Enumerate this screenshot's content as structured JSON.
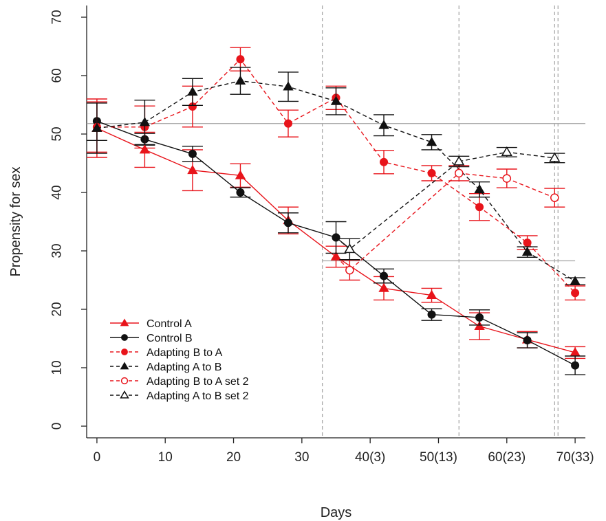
{
  "chart_data": {
    "type": "line",
    "title": "",
    "xlabel": "Days",
    "ylabel": "Propensity for sex",
    "xlim": [
      -1.5,
      71.5
    ],
    "ylim": [
      -2,
      72
    ],
    "x_ticks": [
      {
        "value": 0,
        "label": "0"
      },
      {
        "value": 10,
        "label": "10"
      },
      {
        "value": 20,
        "label": "20"
      },
      {
        "value": 30,
        "label": "30"
      },
      {
        "value": 40,
        "label": "40(3)"
      },
      {
        "value": 50,
        "label": "50(13)"
      },
      {
        "value": 60,
        "label": "60(23)"
      },
      {
        "value": 70,
        "label": "70(33)"
      }
    ],
    "y_ticks": [
      0,
      10,
      20,
      30,
      40,
      50,
      60,
      70
    ],
    "grid": false,
    "legend_position": "bottom-left",
    "reference_lines": {
      "horizontal": [
        {
          "y": 51.8,
          "x_from": -1.5,
          "x_to": 71.5,
          "color": "#aaaaaa"
        },
        {
          "y": 28.3,
          "x_from": 33,
          "x_to": 70,
          "color": "#aaaaaa"
        }
      ],
      "vertical_dashed": [
        33,
        53,
        67,
        67.5
      ],
      "color": "#aaaaaa"
    },
    "series": [
      {
        "name": "Control A",
        "color": "#e8141b",
        "dashed": false,
        "marker": "triangle-filled",
        "x": [
          0,
          7,
          14,
          21,
          28,
          35,
          42,
          49,
          56,
          63,
          70
        ],
        "y": [
          51.0,
          47.3,
          43.8,
          42.9,
          35.2,
          29.0,
          23.6,
          22.4,
          17.1,
          14.8,
          12.6
        ],
        "err": [
          5.0,
          3.0,
          3.5,
          2.0,
          2.3,
          1.8,
          2.0,
          1.2,
          2.3,
          1.4,
          1.0
        ]
      },
      {
        "name": "Control B",
        "color": "#111111",
        "dashed": false,
        "marker": "circle-filled",
        "x": [
          0,
          7,
          14,
          21,
          28,
          35,
          42,
          49,
          56,
          63,
          70
        ],
        "y": [
          52.2,
          49.1,
          46.6,
          40.0,
          34.8,
          32.3,
          25.7,
          19.1,
          18.6,
          14.7,
          10.4
        ],
        "err": [
          3.3,
          1.0,
          1.3,
          0.8,
          1.7,
          2.7,
          1.2,
          1.0,
          1.3,
          1.3,
          1.6
        ]
      },
      {
        "name": "Adapting B to A",
        "color": "#e8141b",
        "dashed": true,
        "marker": "circle-filled",
        "x": [
          0,
          7,
          14,
          21,
          28,
          35,
          42,
          49,
          56,
          63,
          70
        ],
        "y": [
          51.2,
          51.2,
          54.7,
          62.8,
          51.8,
          56.2,
          45.2,
          43.3,
          37.5,
          31.4,
          22.8
        ],
        "err": [
          4.3,
          3.6,
          3.5,
          2.0,
          2.3,
          2.0,
          2.0,
          1.3,
          2.3,
          1.2,
          1.2
        ]
      },
      {
        "name": "Adapting A to B",
        "color": "#111111",
        "dashed": true,
        "marker": "triangle-filled",
        "x": [
          0,
          7,
          14,
          21,
          28,
          35,
          42,
          49,
          56,
          63,
          70
        ],
        "y": [
          51.0,
          52.0,
          57.2,
          59.1,
          58.1,
          55.6,
          51.5,
          48.6,
          40.5,
          29.8,
          24.8
        ],
        "err": [
          4.3,
          3.8,
          2.3,
          2.3,
          2.5,
          2.3,
          1.8,
          1.3,
          1.3,
          0.9,
          0.6
        ]
      },
      {
        "name": "Adapting B to A set 2",
        "color": "#e8141b",
        "dashed": true,
        "marker": "circle-open",
        "x": [
          37,
          53,
          60,
          67
        ],
        "y": [
          26.7,
          43.3,
          42.4,
          39.1
        ],
        "err": [
          1.7,
          1.3,
          1.6,
          1.6
        ],
        "joins_from": {
          "x": 35,
          "y": 29.0
        }
      },
      {
        "name": "Adapting A to B set 2",
        "color": "#111111",
        "dashed": true,
        "marker": "triangle-open",
        "x": [
          37,
          53,
          60,
          67
        ],
        "y": [
          30.3,
          45.3,
          46.9,
          45.9
        ],
        "err": [
          1.8,
          0.9,
          0.8,
          0.8
        ],
        "joins_from": {
          "x": 35,
          "y": 32.3
        }
      }
    ]
  }
}
